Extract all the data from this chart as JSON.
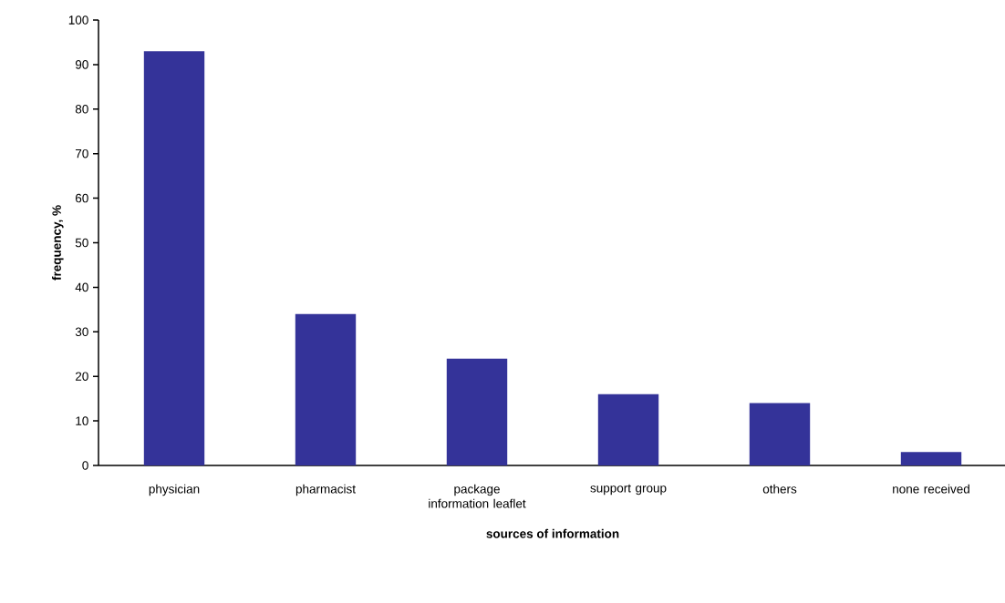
{
  "chart_data": {
    "type": "bar",
    "categories": [
      "physician",
      "pharmacist",
      "package information leaflet",
      "support group",
      "others",
      "none received"
    ],
    "values": [
      93,
      34,
      24,
      16,
      14,
      3
    ],
    "color": "#343399",
    "xlabel": "sources of information",
    "ylabel": "frequency, %",
    "ylim": [
      0,
      100
    ],
    "yticks": [
      0,
      10,
      20,
      30,
      40,
      50,
      60,
      70,
      80,
      90,
      100
    ],
    "grid": false
  }
}
